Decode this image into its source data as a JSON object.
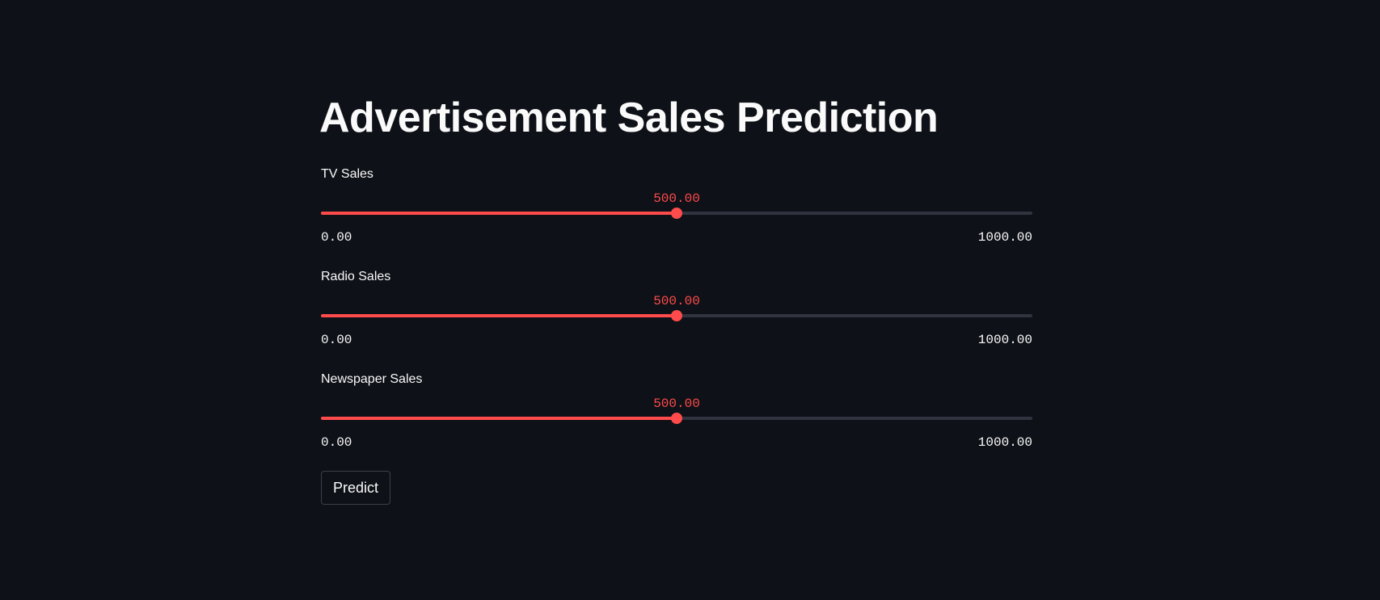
{
  "page": {
    "title": "Advertisement Sales Prediction"
  },
  "sliders": [
    {
      "label": "TV Sales",
      "value_text": "500.00",
      "value": 500,
      "min": 0,
      "max": 1000,
      "min_text": "0.00",
      "max_text": "1000.00"
    },
    {
      "label": "Radio Sales",
      "value_text": "500.00",
      "value": 500,
      "min": 0,
      "max": 1000,
      "min_text": "0.00",
      "max_text": "1000.00"
    },
    {
      "label": "Newspaper Sales",
      "value_text": "500.00",
      "value": 500,
      "min": 0,
      "max": 1000,
      "min_text": "0.00",
      "max_text": "1000.00"
    }
  ],
  "predict_button": {
    "label": "Predict"
  },
  "colors": {
    "background": "#0e1117",
    "accent": "#ff4b4b",
    "track": "#31333f",
    "text": "#fafafa"
  }
}
